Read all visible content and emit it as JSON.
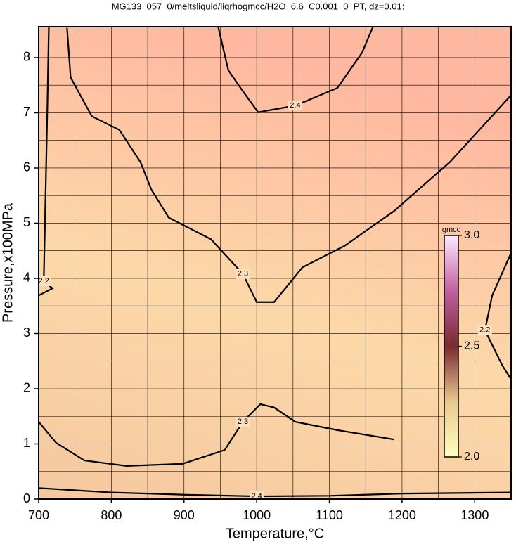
{
  "chart_data": {
    "type": "contour",
    "title": "MG133_057_0/meltsliquid/liqrhogmcc/H2O_6.6_C0.001_0_PT, dz=0.01:",
    "x_label": "Temperature,°C",
    "y_label": "Pressure,x100MPa",
    "xlim": [
      700,
      1350
    ],
    "ylim": [
      0,
      8.56
    ],
    "xticks": [
      700,
      800,
      900,
      1000,
      1100,
      1200,
      1300
    ],
    "yticks": [
      0,
      1,
      2,
      3,
      4,
      5,
      6,
      7,
      8
    ],
    "xgrid": [
      700,
      750,
      800,
      850,
      900,
      950,
      1000,
      1050,
      1100,
      1150,
      1200,
      1250,
      1300,
      1350
    ],
    "ygrid": [
      0,
      0.5,
      1,
      1.5,
      2,
      2.5,
      3,
      3.5,
      4,
      4.5,
      5,
      5.5,
      6,
      6.5,
      7,
      7.5,
      8,
      8.5
    ],
    "contours": [
      {
        "level": 2.3,
        "x": [
          739,
          744,
          773,
          811,
          840,
          855,
          879,
          937,
          981,
          1000,
          1024,
          1063,
          1121,
          1189,
          1266,
          1350
        ],
        "y": [
          8.54,
          7.64,
          6.94,
          6.69,
          6.11,
          5.61,
          5.1,
          4.71,
          4.08,
          3.57,
          3.57,
          4.2,
          4.59,
          5.22,
          6.11,
          7.32
        ]
      },
      {
        "level": 2.4,
        "x": [
          947,
          961,
          981,
          1002,
          1053,
          1111,
          1145,
          1160
        ],
        "y": [
          8.56,
          7.77,
          7.39,
          7.01,
          7.13,
          7.45,
          8.09,
          8.56
        ]
      },
      {
        "level": 2.3,
        "x": [
          700,
          724,
          763,
          821,
          898,
          956,
          981,
          1005,
          1024,
          1053,
          1111,
          1189
        ],
        "y": [
          1.4,
          1.02,
          0.7,
          0.6,
          0.64,
          0.89,
          1.4,
          1.72,
          1.66,
          1.4,
          1.25,
          1.08
        ]
      },
      {
        "level": 2.2,
        "x": [
          714,
          712,
          709,
          707,
          719,
          700
        ],
        "y": [
          8.56,
          7.13,
          5.22,
          3.95,
          3.82,
          3.69
        ]
      },
      {
        "level": 2.2,
        "x": [
          1350,
          1324,
          1314,
          1338,
          1350
        ],
        "y": [
          4.46,
          3.69,
          3.06,
          2.42,
          2.17
        ]
      },
      {
        "level": 2.4,
        "x": [
          700,
          800,
          900,
          1000,
          1100,
          1200,
          1350
        ],
        "y": [
          0.2,
          0.12,
          0.08,
          0.05,
          0.06,
          0.1,
          0.12
        ]
      }
    ],
    "colorbar": {
      "label": "gmcc",
      "lim": [
        2,
        3
      ],
      "ticks": [
        {
          "value": 2,
          "label": "2.0"
        },
        {
          "value": 2.5,
          "label": "2.5"
        },
        {
          "value": 3,
          "label": "3.0"
        }
      ],
      "colors": [
        "#ffffc0",
        "#e8c890",
        "#7a2a30",
        "#c060a0",
        "#ffe8ff"
      ]
    }
  }
}
